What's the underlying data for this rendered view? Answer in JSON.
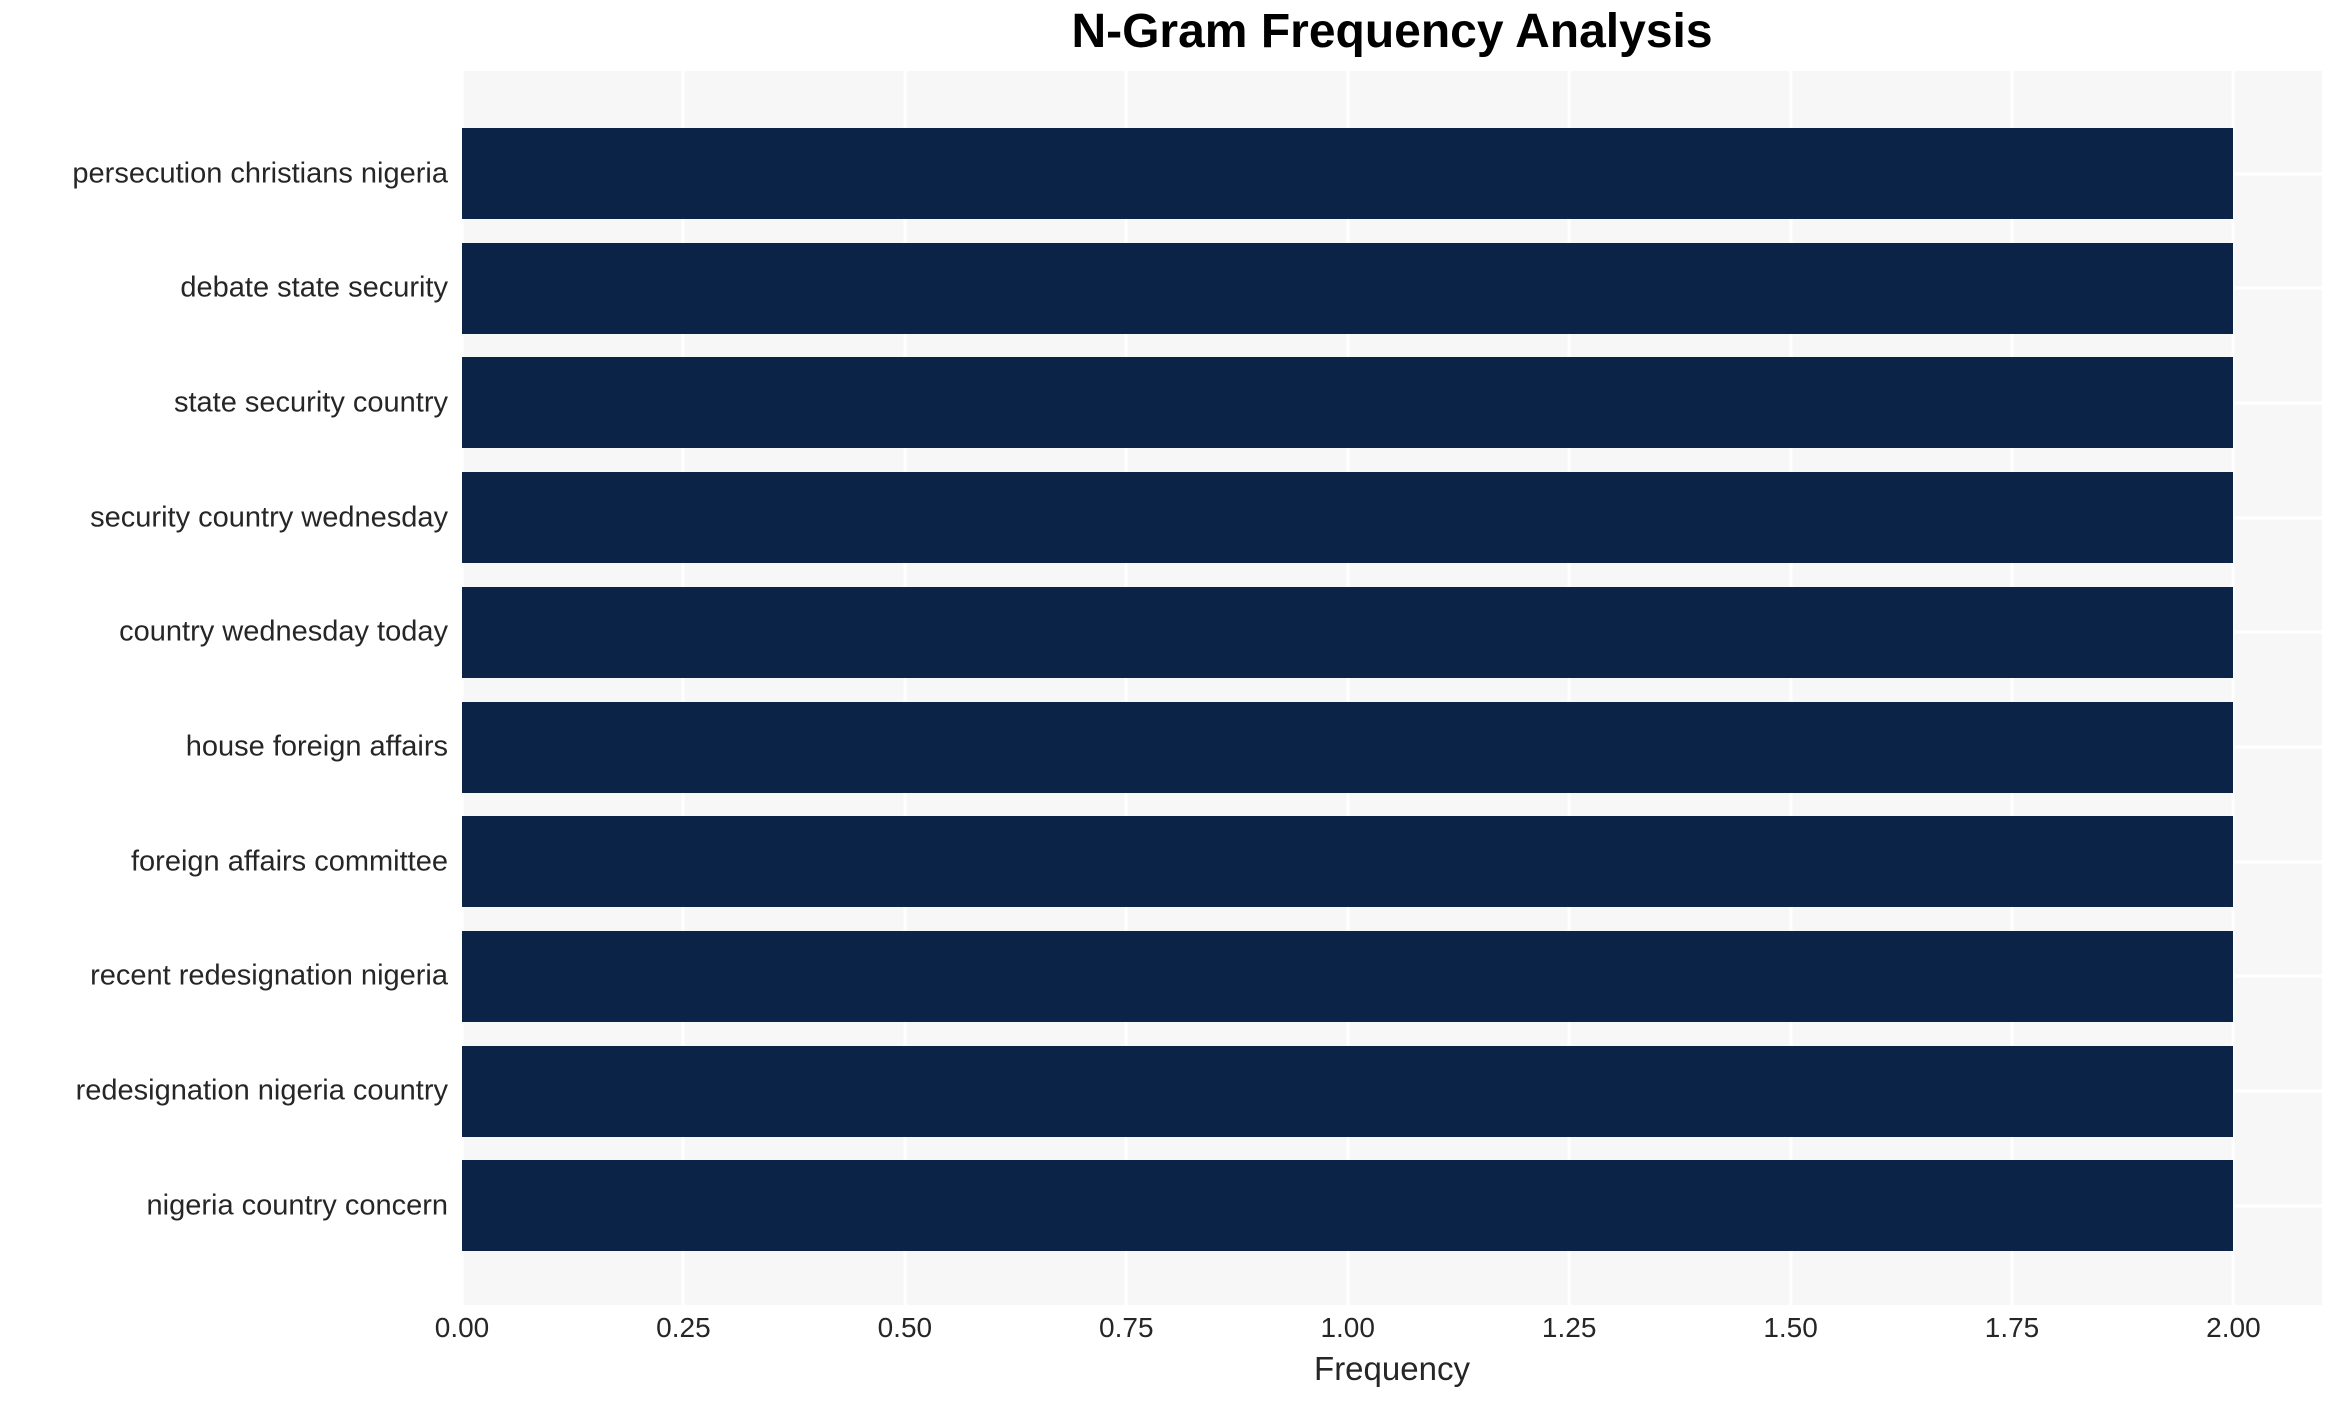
{
  "chart_data": {
    "type": "bar",
    "orientation": "horizontal",
    "title": "N-Gram Frequency Analysis",
    "xlabel": "Frequency",
    "ylabel": "",
    "categories": [
      "persecution christians nigeria",
      "debate state security",
      "state security country",
      "security country wednesday",
      "country wednesday today",
      "house foreign affairs",
      "foreign affairs committee",
      "recent redesignation nigeria",
      "redesignation nigeria country",
      "nigeria country concern"
    ],
    "values": [
      2,
      2,
      2,
      2,
      2,
      2,
      2,
      2,
      2,
      2
    ],
    "xlim": [
      0,
      2.1
    ],
    "xticks": [
      0.0,
      0.25,
      0.5,
      0.75,
      1.0,
      1.25,
      1.5,
      1.75,
      2.0
    ],
    "xtick_labels": [
      "0.00",
      "0.25",
      "0.50",
      "0.75",
      "1.00",
      "1.25",
      "1.50",
      "1.75",
      "2.00"
    ],
    "grid": true,
    "legend": false,
    "colors": {
      "bar": "#0b2347",
      "plot_background": "#f7f7f7",
      "gridline": "#ffffff",
      "title": "#000000",
      "tick_label": "#262626",
      "axis_label": "#262626",
      "page_background": "#ffffff"
    }
  }
}
